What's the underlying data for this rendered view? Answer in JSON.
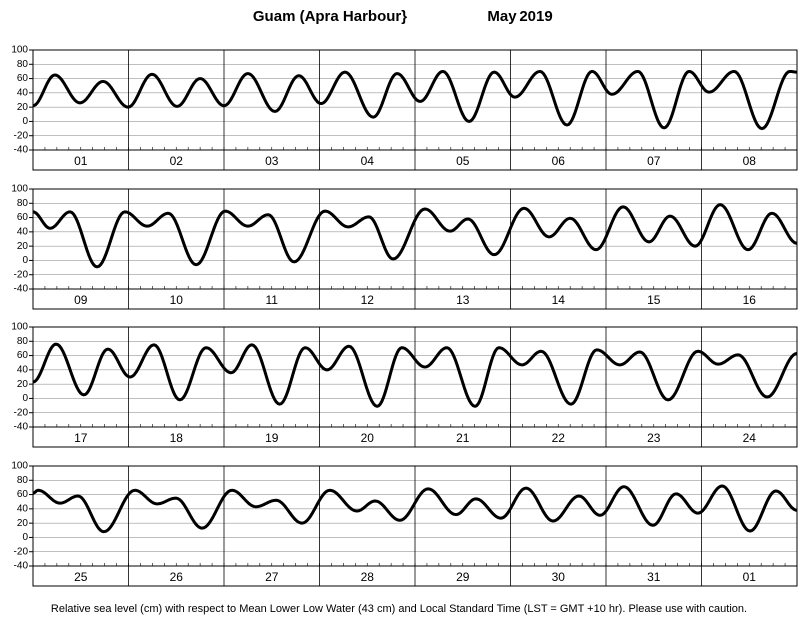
{
  "title": "Guam (Apra Harbour}",
  "month": "May",
  "year": "2019",
  "note": "Relative sea level (cm) with respect to Mean Lower Low Water (43 cm) and Local Standard Time (LST = GMT +10 hr). Please use with caution.",
  "chart_data": [
    {
      "type": "line",
      "color": "#000000",
      "grid": true,
      "categories": [
        "01",
        "02",
        "03",
        "04",
        "05",
        "06",
        "07",
        "08"
      ],
      "xlim": [
        0,
        192
      ],
      "ylim": [
        -40,
        100
      ],
      "yticks": [
        -40,
        -20,
        0,
        20,
        40,
        60,
        80,
        100
      ],
      "x": [
        0,
        5.5,
        11.8,
        17.6,
        23.9,
        29.9,
        36.2,
        42,
        48,
        54,
        60.8,
        66.8,
        72.4,
        78.4,
        85.5,
        91.5,
        97.3,
        103,
        109.6,
        115.9,
        121.1,
        127.4,
        134.2,
        140.5,
        145.5,
        152,
        158.6,
        164.9,
        169.9,
        176.2,
        183.2,
        190.2,
        192
      ],
      "values": [
        22,
        65,
        26,
        56,
        20,
        66,
        21,
        60,
        22,
        67,
        14,
        64,
        25,
        69,
        6,
        67,
        28,
        70,
        0,
        69,
        34,
        70,
        -5,
        70,
        38,
        70,
        -9,
        70,
        41,
        70,
        -10,
        70,
        69
      ]
    },
    {
      "type": "line",
      "color": "#000000",
      "grid": true,
      "categories": [
        "09",
        "10",
        "11",
        "12",
        "13",
        "14",
        "15",
        "16"
      ],
      "xlim": [
        0,
        192
      ],
      "ylim": [
        -40,
        100
      ],
      "yticks": [
        -40,
        -20,
        0,
        20,
        40,
        60,
        80,
        100
      ],
      "x": [
        0,
        4.3,
        9.3,
        16.1,
        23.1,
        28.7,
        34,
        41,
        48.3,
        54,
        59.1,
        65.6,
        73.4,
        79.2,
        84.4,
        90.5,
        98.5,
        104.8,
        109.3,
        115.9,
        123.4,
        129.7,
        135,
        141.5,
        148.3,
        154.8,
        160.1,
        166.4,
        172.7,
        179.7,
        185.7,
        192
      ],
      "values": [
        68,
        45,
        68,
        -9,
        68,
        48,
        66,
        -6,
        69,
        48,
        64,
        -2,
        69,
        47,
        61,
        2,
        72,
        41,
        58,
        8,
        73,
        33,
        59,
        15,
        75,
        26,
        62,
        20,
        78,
        15,
        66,
        24
      ]
    },
    {
      "type": "line",
      "color": "#000000",
      "grid": true,
      "categories": [
        "17",
        "18",
        "19",
        "20",
        "21",
        "22",
        "23",
        "24"
      ],
      "xlim": [
        0,
        192
      ],
      "ylim": [
        -40,
        100
      ],
      "yticks": [
        -40,
        -20,
        0,
        20,
        40,
        60,
        80,
        100
      ],
      "x": [
        0,
        5.8,
        12.8,
        18.8,
        24.4,
        30.4,
        36.9,
        43.5,
        49.8,
        55,
        62,
        68.4,
        73.9,
        79.4,
        86.5,
        92.7,
        98.5,
        104,
        111.1,
        117.1,
        122.9,
        127.7,
        135.2,
        141.7,
        147.5,
        152.5,
        159.6,
        167.1,
        172.2,
        177.2,
        184.5,
        192
      ],
      "values": [
        23,
        76,
        5,
        69,
        30,
        75,
        -2,
        71,
        36,
        75,
        -8,
        71,
        40,
        73,
        -11,
        71,
        44,
        71,
        -11,
        71,
        47,
        66,
        -8,
        68,
        47,
        65,
        -2,
        66,
        48,
        61,
        2,
        63
      ]
    },
    {
      "type": "line",
      "color": "#000000",
      "grid": true,
      "categories": [
        "25",
        "26",
        "27",
        "28",
        "29",
        "30",
        "31",
        "01"
      ],
      "xlim": [
        0,
        192
      ],
      "ylim": [
        -40,
        100
      ],
      "yticks": [
        -40,
        -20,
        0,
        20,
        40,
        60,
        80,
        100
      ],
      "x": [
        0,
        1.3,
        6.8,
        11.3,
        17.8,
        25.6,
        31.2,
        35.9,
        42.5,
        50,
        56,
        61.1,
        67.6,
        74.6,
        81.4,
        86,
        92.2,
        99.3,
        106.3,
        111.3,
        117.6,
        123.9,
        130.7,
        137.2,
        142.5,
        148.5,
        155.8,
        161.6,
        167.1,
        173.2,
        180.2,
        186.7,
        192
      ],
      "values": [
        62,
        66,
        48,
        58,
        8,
        66,
        47,
        55,
        13,
        66,
        43,
        52,
        20,
        66,
        37,
        51,
        24,
        68,
        32,
        54,
        27,
        69,
        23,
        58,
        31,
        71,
        17,
        61,
        34,
        72,
        9,
        65,
        38
      ]
    }
  ]
}
